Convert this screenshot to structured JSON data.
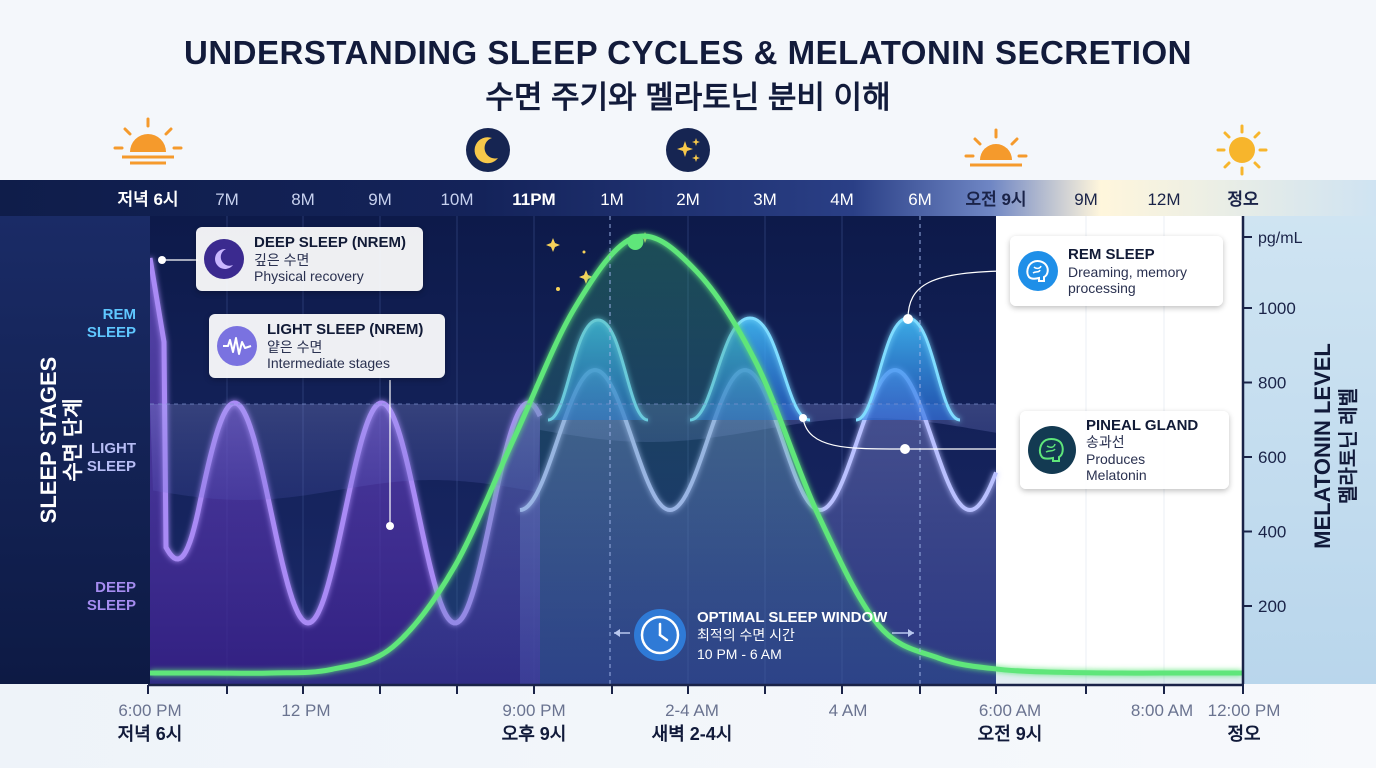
{
  "title": "UNDERSTANDING SLEEP CYCLES & MELATONIN SECRETION",
  "subtitle": "수면 주기와 멜라토닌 분비 이해",
  "top_time_labels": [
    "저녁 6시",
    "7M",
    "8M",
    "9M",
    "10M",
    "11PM",
    "1M",
    "2M",
    "3M",
    "4M",
    "6M",
    "오전 9시",
    "9M",
    "12M",
    "정오"
  ],
  "top_icons": [
    "sunset-icon",
    "moon-icon",
    "stars-icon",
    "sunrise-icon",
    "sun-icon"
  ],
  "left_axis": {
    "title_en": "SLEEP STAGES",
    "title_ko": "수면 단계",
    "levels": [
      {
        "line1": "REM",
        "line2": "SLEEP"
      },
      {
        "line1": "LIGHT",
        "line2": "SLEEP"
      },
      {
        "line1": "DEEP",
        "line2": "SLEEP"
      }
    ]
  },
  "right_axis": {
    "title_en": "MELATONIN LEVEL",
    "title_ko": "멜라토닌 레벨",
    "unit": "pg/mL",
    "ticks": [
      "1000",
      "800",
      "600",
      "400",
      "200"
    ]
  },
  "bottom_axis": [
    {
      "en": "6:00 PM",
      "ko": "저녁 6시"
    },
    {
      "en": "12 PM",
      "ko": ""
    },
    {
      "en": "9:00 PM",
      "ko": "오후 9시"
    },
    {
      "en": "2-4 AM",
      "ko": "새벽 2-4시"
    },
    {
      "en": "4 AM",
      "ko": ""
    },
    {
      "en": "6:00 AM",
      "ko": "오전 9시"
    },
    {
      "en": "8:00 AM",
      "ko": ""
    },
    {
      "en": "12:00 PM",
      "ko": "정오"
    }
  ],
  "callouts": {
    "deep": {
      "title": "DEEP SLEEP (NREM)",
      "ko": "깊은 수면",
      "desc": "Physical recovery",
      "icon": "moon-icon"
    },
    "light": {
      "title": "LIGHT SLEEP (NREM)",
      "ko": "얕은 수면",
      "desc": "Intermediate stages",
      "icon": "wave-icon"
    },
    "rem": {
      "title": "REM SLEEP",
      "ko": "",
      "desc1": "Dreaming, memory",
      "desc2": "processing",
      "icon": "brain-icon"
    },
    "pineal": {
      "title": "PINEAL GLAND",
      "ko": "송과선",
      "desc1": "Produces",
      "desc2": "Melatonin",
      "icon": "brain-icon"
    }
  },
  "optimal_window": {
    "title": "OPTIMAL SLEEP WINDOW",
    "ko": "최적의 수면 시간",
    "range": "10 PM - 6 AM",
    "icon": "clock-icon"
  },
  "colors": {
    "night_bg": "#142457",
    "day_bg": "#ffffff",
    "melatonin_line": "#5fe67a",
    "rem_fill": "#2fa8f2",
    "light_fill": "#8d8fe8",
    "deep_fill": "#5b2fb0",
    "title_color": "#111a3a"
  },
  "chart_data": {
    "type": "line",
    "x_hours_from_6pm": [
      0,
      1,
      2,
      3,
      4,
      5,
      6,
      7,
      8,
      9,
      10,
      11,
      12,
      13,
      14,
      15,
      16,
      17,
      18
    ],
    "series": [
      {
        "name": "MELATONIN LEVEL",
        "unit": "pg/mL",
        "values": [
          20,
          20,
          20,
          30,
          90,
          300,
          650,
          1000,
          1190,
          1100,
          850,
          450,
          150,
          60,
          30,
          22,
          20,
          20,
          20
        ]
      }
    ],
    "right_ylim": [
      0,
      1200
    ],
    "right_yticks": [
      200,
      400,
      600,
      800,
      1000
    ],
    "stage_levels": [
      "REM SLEEP",
      "LIGHT SLEEP",
      "DEEP SLEEP"
    ],
    "grid": true
  }
}
